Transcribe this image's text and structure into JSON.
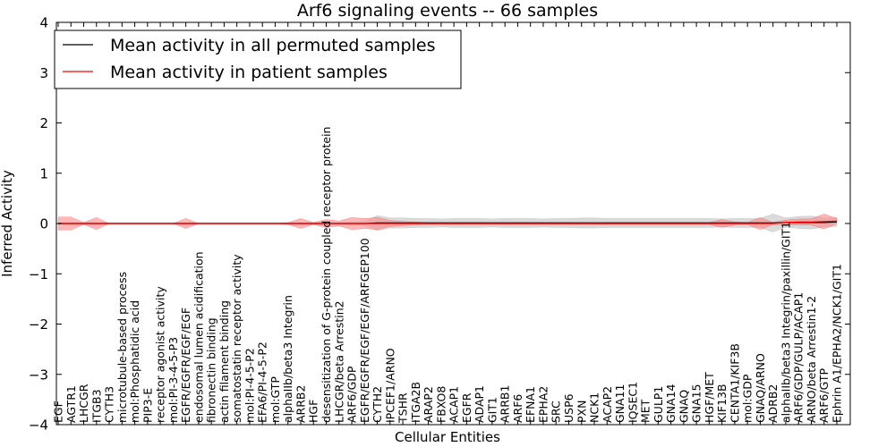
{
  "chart_data": {
    "type": "line",
    "title": "Arf6 signaling events -- 66 samples",
    "xlabel": "Cellular Entities",
    "ylabel": "Inferred Activity",
    "ylim": [
      -4,
      4
    ],
    "yticks": [
      -4,
      -3,
      -2,
      -1,
      0,
      1,
      2,
      3,
      4
    ],
    "ytick_labels": [
      "−4",
      "−3",
      "−2",
      "−1",
      "0",
      "1",
      "2",
      "3",
      "4"
    ],
    "legend_position": "top-left",
    "colors": {
      "permuted": "#000000",
      "patient": "#ff0000",
      "patient_band": "#ff8888",
      "permuted_band": "#bbbbbb"
    },
    "categories": [
      "EGF",
      "AGTR1",
      "LHCGR",
      "ITGB3",
      "CYTH3",
      "microtubule-based process",
      "mol:Phosphatidic acid",
      "PIP3-E",
      "receptor agonist activity",
      "mol:PI-3-4-5-P3",
      "EGFR/EGFR/EGF/EGF",
      "endosomal lumen acidification",
      "fibronectin binding",
      "actin filament binding",
      "somatostatin receptor activity",
      "mol:PI-4-5-P2",
      "EFA6/PI-4-5-P2",
      "mol:GTP",
      "alphaIIb/beta3 Integrin",
      "ARRB2",
      "HGF",
      "desensitization of G-protein coupled receptor protein",
      "LHCGR/beta Arrestin2",
      "ARF6/GDP",
      "EGFR/EGFR/EGF/EGF/ARFGEP100",
      "CYTH2",
      "IPCEF1/ARNO",
      "TSHR",
      "ITGA2B",
      "ARAP2",
      "FBXO8",
      "ACAP1",
      "EGFR",
      "ADAP1",
      "GIT1",
      "ARRB1",
      "ARF6",
      "EFNA1",
      "EPHA2",
      "SRC",
      "USP6",
      "PXN",
      "NCK1",
      "ACAP2",
      "GNA11",
      "IQSEC1",
      "MET",
      "GULP1",
      "GNA14",
      "GNAQ",
      "GNA15",
      "HGF/MET",
      "KIF13B",
      "CENTA1/KIF3B",
      "mol:GDP",
      "GNAQ/ARNO",
      "ADRB2",
      "alphaIIb/beta3 Integrin/paxillin/GIT1",
      "ARF6/GDP/GULP/ACAP1",
      "ARNO/beta Arrestin1-2",
      "ARF6/GTP",
      "Ephrin A1/EPHA2/NCK1/GIT1"
    ],
    "series": [
      {
        "name": "Mean activity in all permuted samples",
        "values": [
          0,
          0,
          0,
          0,
          0,
          0,
          0,
          0,
          0,
          0,
          0,
          0,
          0,
          0,
          0,
          0,
          0,
          0,
          0,
          0,
          0,
          0,
          0,
          0,
          0,
          0.01,
          0.01,
          0.01,
          0.01,
          0.01,
          0.01,
          0.01,
          0.01,
          0.01,
          0.01,
          0.01,
          0.01,
          0.01,
          0.01,
          0.01,
          0.01,
          0.01,
          0.01,
          0.01,
          0.01,
          0.01,
          0.01,
          0.01,
          0.01,
          0.01,
          0.01,
          0.01,
          0.01,
          0.01,
          0.01,
          0.01,
          0.01,
          0.02,
          0.02,
          0.02,
          0.02,
          0.03
        ]
      },
      {
        "name": "Mean activity in patient samples",
        "values": [
          0,
          0,
          0,
          0,
          0,
          0,
          0,
          0,
          0,
          0,
          0,
          0,
          0,
          0,
          0,
          0,
          0,
          0,
          0,
          0,
          0,
          0,
          0,
          0,
          0,
          0,
          0,
          0,
          0,
          0,
          0,
          0,
          0,
          0,
          0,
          0,
          0,
          0,
          0,
          0,
          0,
          0,
          0,
          0,
          0,
          0,
          0,
          0,
          0,
          0,
          0,
          0,
          0,
          0,
          0,
          0,
          0,
          0.02,
          0.03,
          0.03,
          0.04,
          0.05
        ]
      }
    ],
    "patient_band": [
      0.13,
      0.13,
      0.02,
      0.12,
      0,
      0,
      0,
      0,
      0,
      0,
      0.1,
      0,
      0,
      0,
      0,
      0,
      0,
      0,
      0.02,
      0.1,
      0.02,
      0.08,
      0.05,
      0.12,
      0.1,
      0.12,
      0.06,
      0.04,
      0.03,
      0.02,
      0.02,
      0.02,
      0.02,
      0.02,
      0.02,
      0.02,
      0.02,
      0.02,
      0.02,
      0.02,
      0.02,
      0.02,
      0.02,
      0.02,
      0.02,
      0.02,
      0.02,
      0.02,
      0.02,
      0.02,
      0.02,
      0.02,
      0.08,
      0.03,
      0.02,
      0.12,
      0.02,
      0.05,
      0.06,
      0.06,
      0.15,
      0.05
    ],
    "permuted_band": [
      0.02,
      0.02,
      0.02,
      0.02,
      0.02,
      0.02,
      0.02,
      0.02,
      0.02,
      0.02,
      0.02,
      0.02,
      0.02,
      0.02,
      0.02,
      0.02,
      0.02,
      0.02,
      0.02,
      0.02,
      0.02,
      0.02,
      0.02,
      0.03,
      0.04,
      0.15,
      0.1,
      0.1,
      0.09,
      0.09,
      0.08,
      0.09,
      0.09,
      0.09,
      0.08,
      0.09,
      0.09,
      0.09,
      0.08,
      0.09,
      0.09,
      0.1,
      0.1,
      0.09,
      0.09,
      0.09,
      0.09,
      0.09,
      0.09,
      0.09,
      0.09,
      0.09,
      0.08,
      0.09,
      0.09,
      0.09,
      0.18,
      0.09,
      0.12,
      0.13,
      0.09,
      0.09
    ]
  }
}
